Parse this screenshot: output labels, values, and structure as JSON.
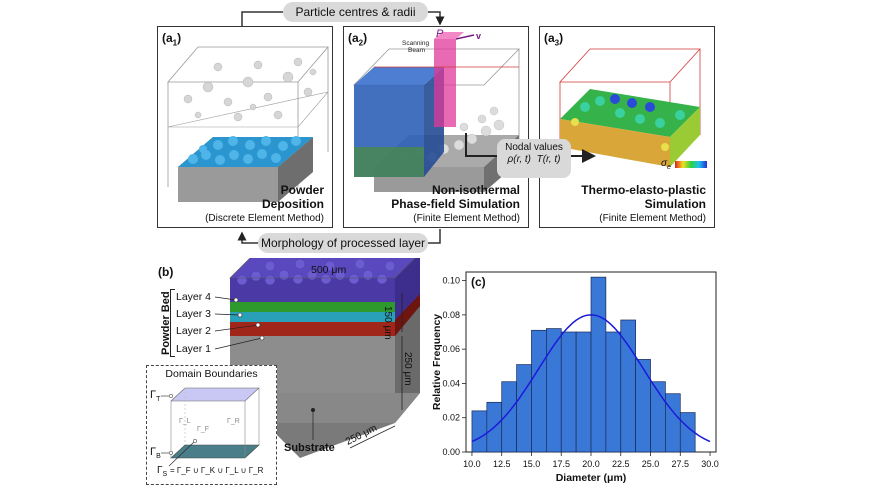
{
  "top": {
    "pill_top": "Particle centres & radii",
    "pill_bottom": "Morphology of processed layer",
    "a1": {
      "label_main": "(a",
      "label_sub": "1",
      "label_end": ")",
      "title_line1": "Powder",
      "title_line2": "Deposition",
      "method": "(Discrete Element Method)"
    },
    "a2": {
      "label_main": "(a",
      "label_sub": "2",
      "label_end": ")",
      "title_line1": "Non-isothermal",
      "title_line2": "Phase-field Simulation",
      "method": "(Finite Element Method)",
      "beam_label_1": "Scanning",
      "beam_label_2": "Beam",
      "power_symbol": "P",
      "velocity_symbol": "v"
    },
    "a3": {
      "label_main": "(a",
      "label_sub": "3",
      "label_end": ")",
      "title_line1": "Thermo-elasto-plastic",
      "title_line2": "Simulation",
      "method": "(Finite Element Method)",
      "stress_symbol": "σ",
      "stress_sub": "e"
    },
    "nodal": {
      "line1": "Nodal values",
      "rho": "ρ(r, t)",
      "temp": "T(r, t)"
    }
  },
  "b": {
    "label": "(b)",
    "width_dim": "500 μm",
    "bed_height_dim": "150 μm",
    "substrate_height_dim": "250 μm",
    "depth_dim": "250 μm",
    "powder_bed_label": "Powder Bed",
    "layers": [
      "Layer 4",
      "Layer 3",
      "Layer 2",
      "Layer 1"
    ],
    "substrate_label": "Substrate",
    "domain_title": "Domain Boundaries",
    "gamma_T": "Γ",
    "gamma_T_sub": "T",
    "gamma_B": "Γ",
    "gamma_B_sub": "B",
    "gamma_S": "Γ",
    "gamma_S_sub": "S",
    "gamma_S_eq": "= Γ_F ∪ Γ_K ∪ Γ_L ∪ Γ_R",
    "face_L": "Γ_L",
    "face_F": "Γ_F",
    "face_R": "Γ_R"
  },
  "chart_data": {
    "type": "bar",
    "label": "(c)",
    "xlabel": "Diameter (μm)",
    "ylabel": "Relative Frequency",
    "xlim": [
      9.5,
      30.5
    ],
    "ylim": [
      0,
      0.105
    ],
    "xticks": [
      "10.0",
      "12.5",
      "15.0",
      "17.5",
      "20.0",
      "22.5",
      "25.0",
      "27.5",
      "30.0"
    ],
    "yticks": [
      "0.00",
      "0.02",
      "0.04",
      "0.06",
      "0.08",
      "0.10"
    ],
    "bin_edges": [
      10.0,
      11.25,
      12.5,
      13.75,
      15.0,
      16.25,
      17.5,
      18.75,
      20.0,
      21.25,
      22.5,
      23.75,
      25.0,
      26.25,
      27.5,
      28.75
    ],
    "values": [
      0.024,
      0.029,
      0.041,
      0.051,
      0.071,
      0.072,
      0.07,
      0.07,
      0.102,
      0.07,
      0.077,
      0.054,
      0.041,
      0.034,
      0.023
    ],
    "bar_color": "#3a78d8",
    "fit_curve": {
      "type": "normal",
      "mean": 20.0,
      "std": 4.4,
      "peak": 0.08,
      "color": "#1a1adb"
    }
  }
}
